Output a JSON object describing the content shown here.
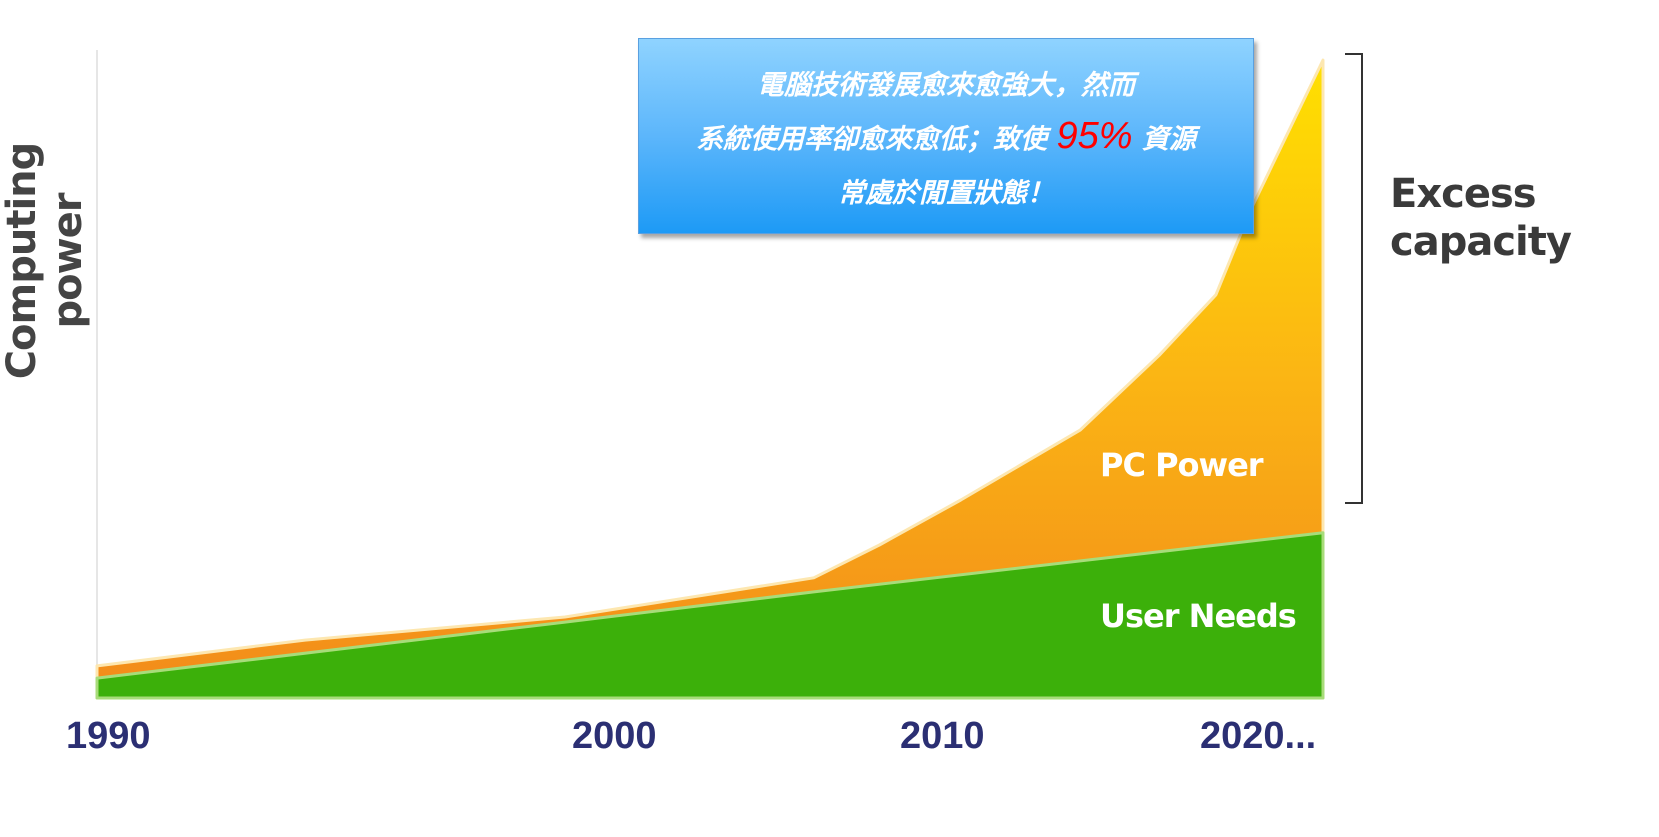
{
  "chart_data": {
    "type": "area",
    "title": "",
    "ylabel": "Computing power",
    "xlabel": "",
    "x_ticks": [
      {
        "value": 1990,
        "label": "1990"
      },
      {
        "value": 2000,
        "label": "2000"
      },
      {
        "value": 2010,
        "label": "2010"
      },
      {
        "value": 2020,
        "label": "2020..."
      }
    ],
    "xlim": [
      1990,
      2022
    ],
    "ylim": [
      0,
      100
    ],
    "grid": false,
    "series": [
      {
        "name": "PC Power",
        "color_top": "#ffd800",
        "color_bottom": "#f28a1a",
        "x": [
          1990,
          1994,
          1999,
          2006,
          2008,
          2010.5,
          2014.3,
          2016.8,
          2018.6,
          2019.7,
          2022
        ],
        "y": [
          5,
          9,
          12.6,
          18.7,
          23.8,
          30.8,
          41.7,
          53.3,
          62.7,
          75.9,
          99.2
        ]
      },
      {
        "name": "User Needs",
        "color": "#3cb00a",
        "x": [
          1990,
          1999,
          2006,
          2022
        ],
        "y": [
          3.1,
          11.8,
          16.5,
          25.7
        ]
      }
    ],
    "annotations": {
      "bracket_label": [
        "Excess",
        "capacity"
      ],
      "callout": {
        "line1": "電腦技術發展愈來愈強大，然而",
        "line2_pre": "系統使用率卻愈來愈低；致使 ",
        "line2_highlight": "95%",
        "line2_post": " 資源",
        "line3": "常處於閒置狀態！",
        "highlight_color": "#ff0000"
      }
    }
  }
}
